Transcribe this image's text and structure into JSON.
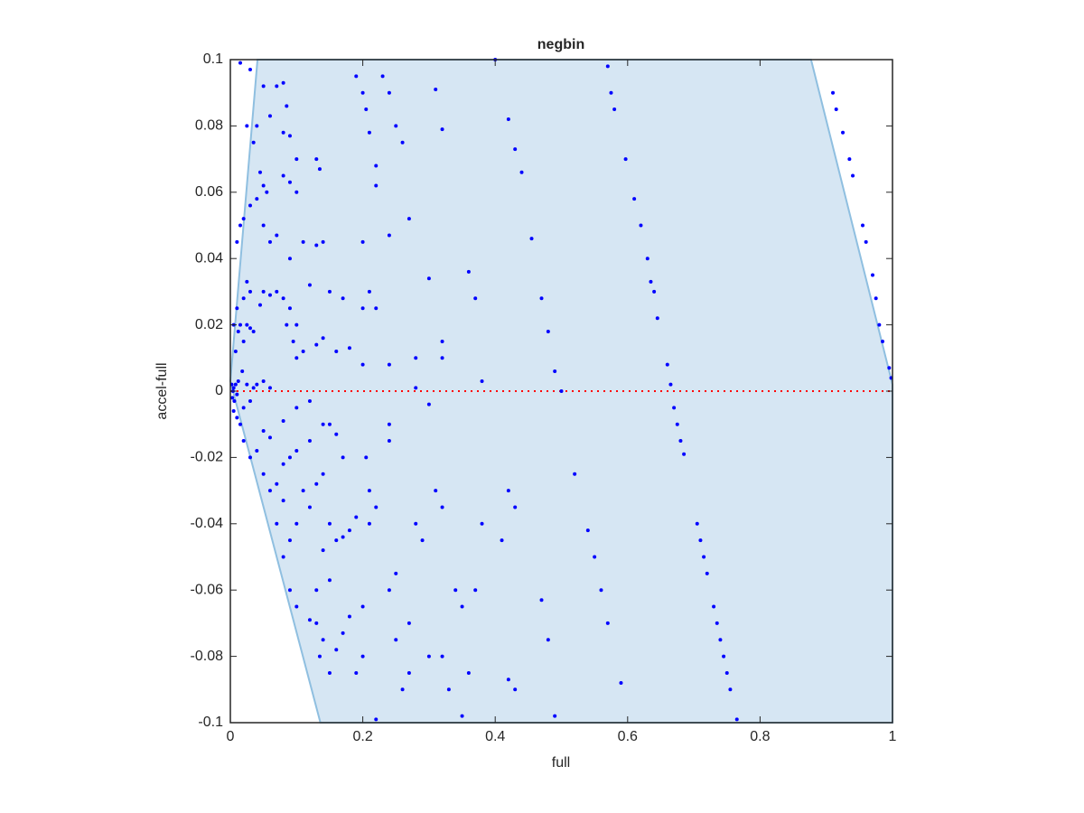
{
  "chart_data": {
    "type": "scatter",
    "title": "negbin",
    "xlabel": "full",
    "ylabel": "accel-full",
    "color": "#0000ff",
    "xlim": [
      0,
      1
    ],
    "xticks": [
      0,
      0.2,
      0.4,
      0.6,
      0.8,
      1
    ],
    "ylim": [
      -0.1,
      0.1
    ],
    "yticks": [
      -0.1,
      -0.08,
      -0.06,
      -0.04,
      -0.02,
      0,
      0.02,
      0.04,
      0.06,
      0.08,
      0.1
    ],
    "region": {
      "x": [
        0.041,
        0.877,
        1,
        1,
        0.136,
        0
      ],
      "y": [
        0.1,
        0.1,
        0.002,
        -0.1,
        -0.1,
        0.003
      ],
      "color": "#d6e6f3",
      "edge_color": "#8fbfe0"
    },
    "hline": {
      "y": 0,
      "color": "#ff0000"
    },
    "x": [
      0.91,
      0.915,
      0.925,
      0.935,
      0.94,
      0.955,
      0.96,
      0.97,
      0.975,
      0.98,
      0.985,
      0.995,
      0.998,
      0.57,
      0.575,
      0.58,
      0.597,
      0.61,
      0.62,
      0.63,
      0.635,
      0.64,
      0.645,
      0.66,
      0.665,
      0.67,
      0.675,
      0.68,
      0.685,
      0.705,
      0.71,
      0.715,
      0.72,
      0.73,
      0.735,
      0.74,
      0.745,
      0.75,
      0.755,
      0.765,
      0.4,
      0.42,
      0.43,
      0.44,
      0.455,
      0.47,
      0.48,
      0.49,
      0.5,
      0.002,
      0.003,
      0.005,
      0.004,
      0.006,
      0.008,
      0.01,
      0.012,
      0.005,
      0.01,
      0.015,
      0.02,
      0.018,
      0.025,
      0.03,
      0.035,
      0.04,
      0.05,
      0.06,
      0.008,
      0.012,
      0.015,
      0.02,
      0.025,
      0.03,
      0.035,
      0.005,
      0.01,
      0.02,
      0.025,
      0.03,
      0.045,
      0.05,
      0.06,
      0.07,
      0.08,
      0.09,
      0.1,
      0.085,
      0.095,
      0.1,
      0.11,
      0.13,
      0.14,
      0.15,
      0.17,
      0.16,
      0.18,
      0.2,
      0.12,
      0.09,
      0.06,
      0.05,
      0.07,
      0.11,
      0.13,
      0.14,
      0.1,
      0.09,
      0.08,
      0.045,
      0.05,
      0.055,
      0.02,
      0.015,
      0.03,
      0.04,
      0.035,
      0.04,
      0.025,
      0.06,
      0.07,
      0.08,
      0.085,
      0.09,
      0.1,
      0.13,
      0.135,
      0.08,
      0.05,
      0.015,
      0.03,
      0.02,
      0.03,
      0.04,
      0.05,
      0.06,
      0.07,
      0.08,
      0.09,
      0.1,
      0.12,
      0.14,
      0.05,
      0.06,
      0.08,
      0.1,
      0.12,
      0.15,
      0.16,
      0.17,
      0.14,
      0.13,
      0.11,
      0.12,
      0.1,
      0.09,
      0.08,
      0.07,
      0.08,
      0.09,
      0.1,
      0.13,
      0.15,
      0.16,
      0.17,
      0.18,
      0.19,
      0.15,
      0.14,
      0.13,
      0.12,
      0.14,
      0.135,
      0.15,
      0.16,
      0.17,
      0.18,
      0.2,
      0.2,
      0.19,
      0.21,
      0.22,
      0.21,
      0.205,
      0.24,
      0.24,
      0.25,
      0.24,
      0.25,
      0.27,
      0.27,
      0.26,
      0.28,
      0.29,
      0.31,
      0.32,
      0.3,
      0.32,
      0.33,
      0.34,
      0.35,
      0.36,
      0.38,
      0.37,
      0.42,
      0.43,
      0.41,
      0.42,
      0.43,
      0.47,
      0.48,
      0.52,
      0.54,
      0.55,
      0.56,
      0.57,
      0.59,
      0.49,
      0.22,
      0.35,
      0.23,
      0.24,
      0.25,
      0.26,
      0.27,
      0.24,
      0.3,
      0.32,
      0.32,
      0.37,
      0.36,
      0.31,
      0.32,
      0.2,
      0.22,
      0.21,
      0.22,
      0.2,
      0.24,
      0.28,
      0.28,
      0.38,
      0.3,
      0.19,
      0.2,
      0.205,
      0.21,
      0.22,
      0.01
    ],
    "values": [
      0.09,
      0.085,
      0.078,
      0.07,
      0.065,
      0.05,
      0.045,
      0.035,
      0.028,
      0.02,
      0.015,
      0.007,
      0.004,
      0.098,
      0.09,
      0.085,
      0.07,
      0.058,
      0.05,
      0.04,
      0.033,
      0.03,
      0.022,
      0.008,
      0.002,
      -0.005,
      -0.01,
      -0.015,
      -0.019,
      -0.04,
      -0.045,
      -0.05,
      -0.055,
      -0.065,
      -0.07,
      -0.075,
      -0.08,
      -0.085,
      -0.09,
      -0.099,
      0.1,
      0.082,
      0.073,
      0.066,
      0.046,
      0.028,
      0.018,
      0.006,
      0,
      0.002,
      -0.002,
      0.001,
      0,
      -0.003,
      0.002,
      -0.001,
      0.003,
      -0.006,
      -0.008,
      -0.01,
      -0.005,
      0.006,
      0.002,
      -0.003,
      0.001,
      0.002,
      0.003,
      0.001,
      0.012,
      0.018,
      0.02,
      0.015,
      0.02,
      0.019,
      0.018,
      0.02,
      0.025,
      0.028,
      0.033,
      0.03,
      0.026,
      0.03,
      0.029,
      0.03,
      0.028,
      0.025,
      0.02,
      0.02,
      0.015,
      0.01,
      0.012,
      0.014,
      0.016,
      0.03,
      0.028,
      0.012,
      0.013,
      0.025,
      0.032,
      0.04,
      0.045,
      0.05,
      0.047,
      0.045,
      0.044,
      0.045,
      0.06,
      0.063,
      0.065,
      0.066,
      0.062,
      0.06,
      0.052,
      0.05,
      0.056,
      0.058,
      0.075,
      0.08,
      0.08,
      0.083,
      0.092,
      0.093,
      0.086,
      0.077,
      0.07,
      0.07,
      0.067,
      0.078,
      0.092,
      0.099,
      0.097,
      -0.015,
      -0.02,
      -0.018,
      -0.025,
      -0.03,
      -0.028,
      -0.022,
      -0.02,
      -0.018,
      -0.015,
      -0.01,
      -0.012,
      -0.014,
      -0.009,
      -0.005,
      -0.003,
      -0.01,
      -0.013,
      -0.02,
      -0.025,
      -0.028,
      -0.03,
      -0.035,
      -0.04,
      -0.045,
      -0.033,
      -0.04,
      -0.05,
      -0.06,
      -0.065,
      -0.06,
      -0.057,
      -0.045,
      -0.044,
      -0.042,
      -0.038,
      -0.04,
      -0.048,
      -0.07,
      -0.069,
      -0.075,
      -0.08,
      -0.085,
      -0.078,
      -0.073,
      -0.068,
      -0.065,
      -0.08,
      -0.085,
      -0.04,
      -0.035,
      -0.03,
      -0.02,
      -0.01,
      -0.015,
      -0.055,
      -0.06,
      -0.075,
      -0.07,
      -0.085,
      -0.09,
      -0.04,
      -0.045,
      -0.03,
      -0.035,
      -0.08,
      -0.08,
      -0.09,
      -0.06,
      -0.065,
      -0.085,
      -0.04,
      -0.06,
      -0.087,
      -0.09,
      -0.045,
      -0.03,
      -0.035,
      -0.063,
      -0.075,
      -0.025,
      -0.042,
      -0.05,
      -0.06,
      -0.07,
      -0.088,
      -0.098,
      -0.099,
      -0.098,
      0.095,
      0.09,
      0.08,
      0.075,
      0.052,
      0.047,
      0.034,
      0.015,
      0.01,
      0.028,
      0.036,
      0.091,
      0.079,
      0.045,
      0.062,
      0.03,
      0.025,
      0.008,
      0.008,
      0.01,
      0.001,
      0.003,
      -0.004,
      0.095,
      0.09,
      0.085,
      0.078,
      0.068,
      0.045
    ]
  }
}
